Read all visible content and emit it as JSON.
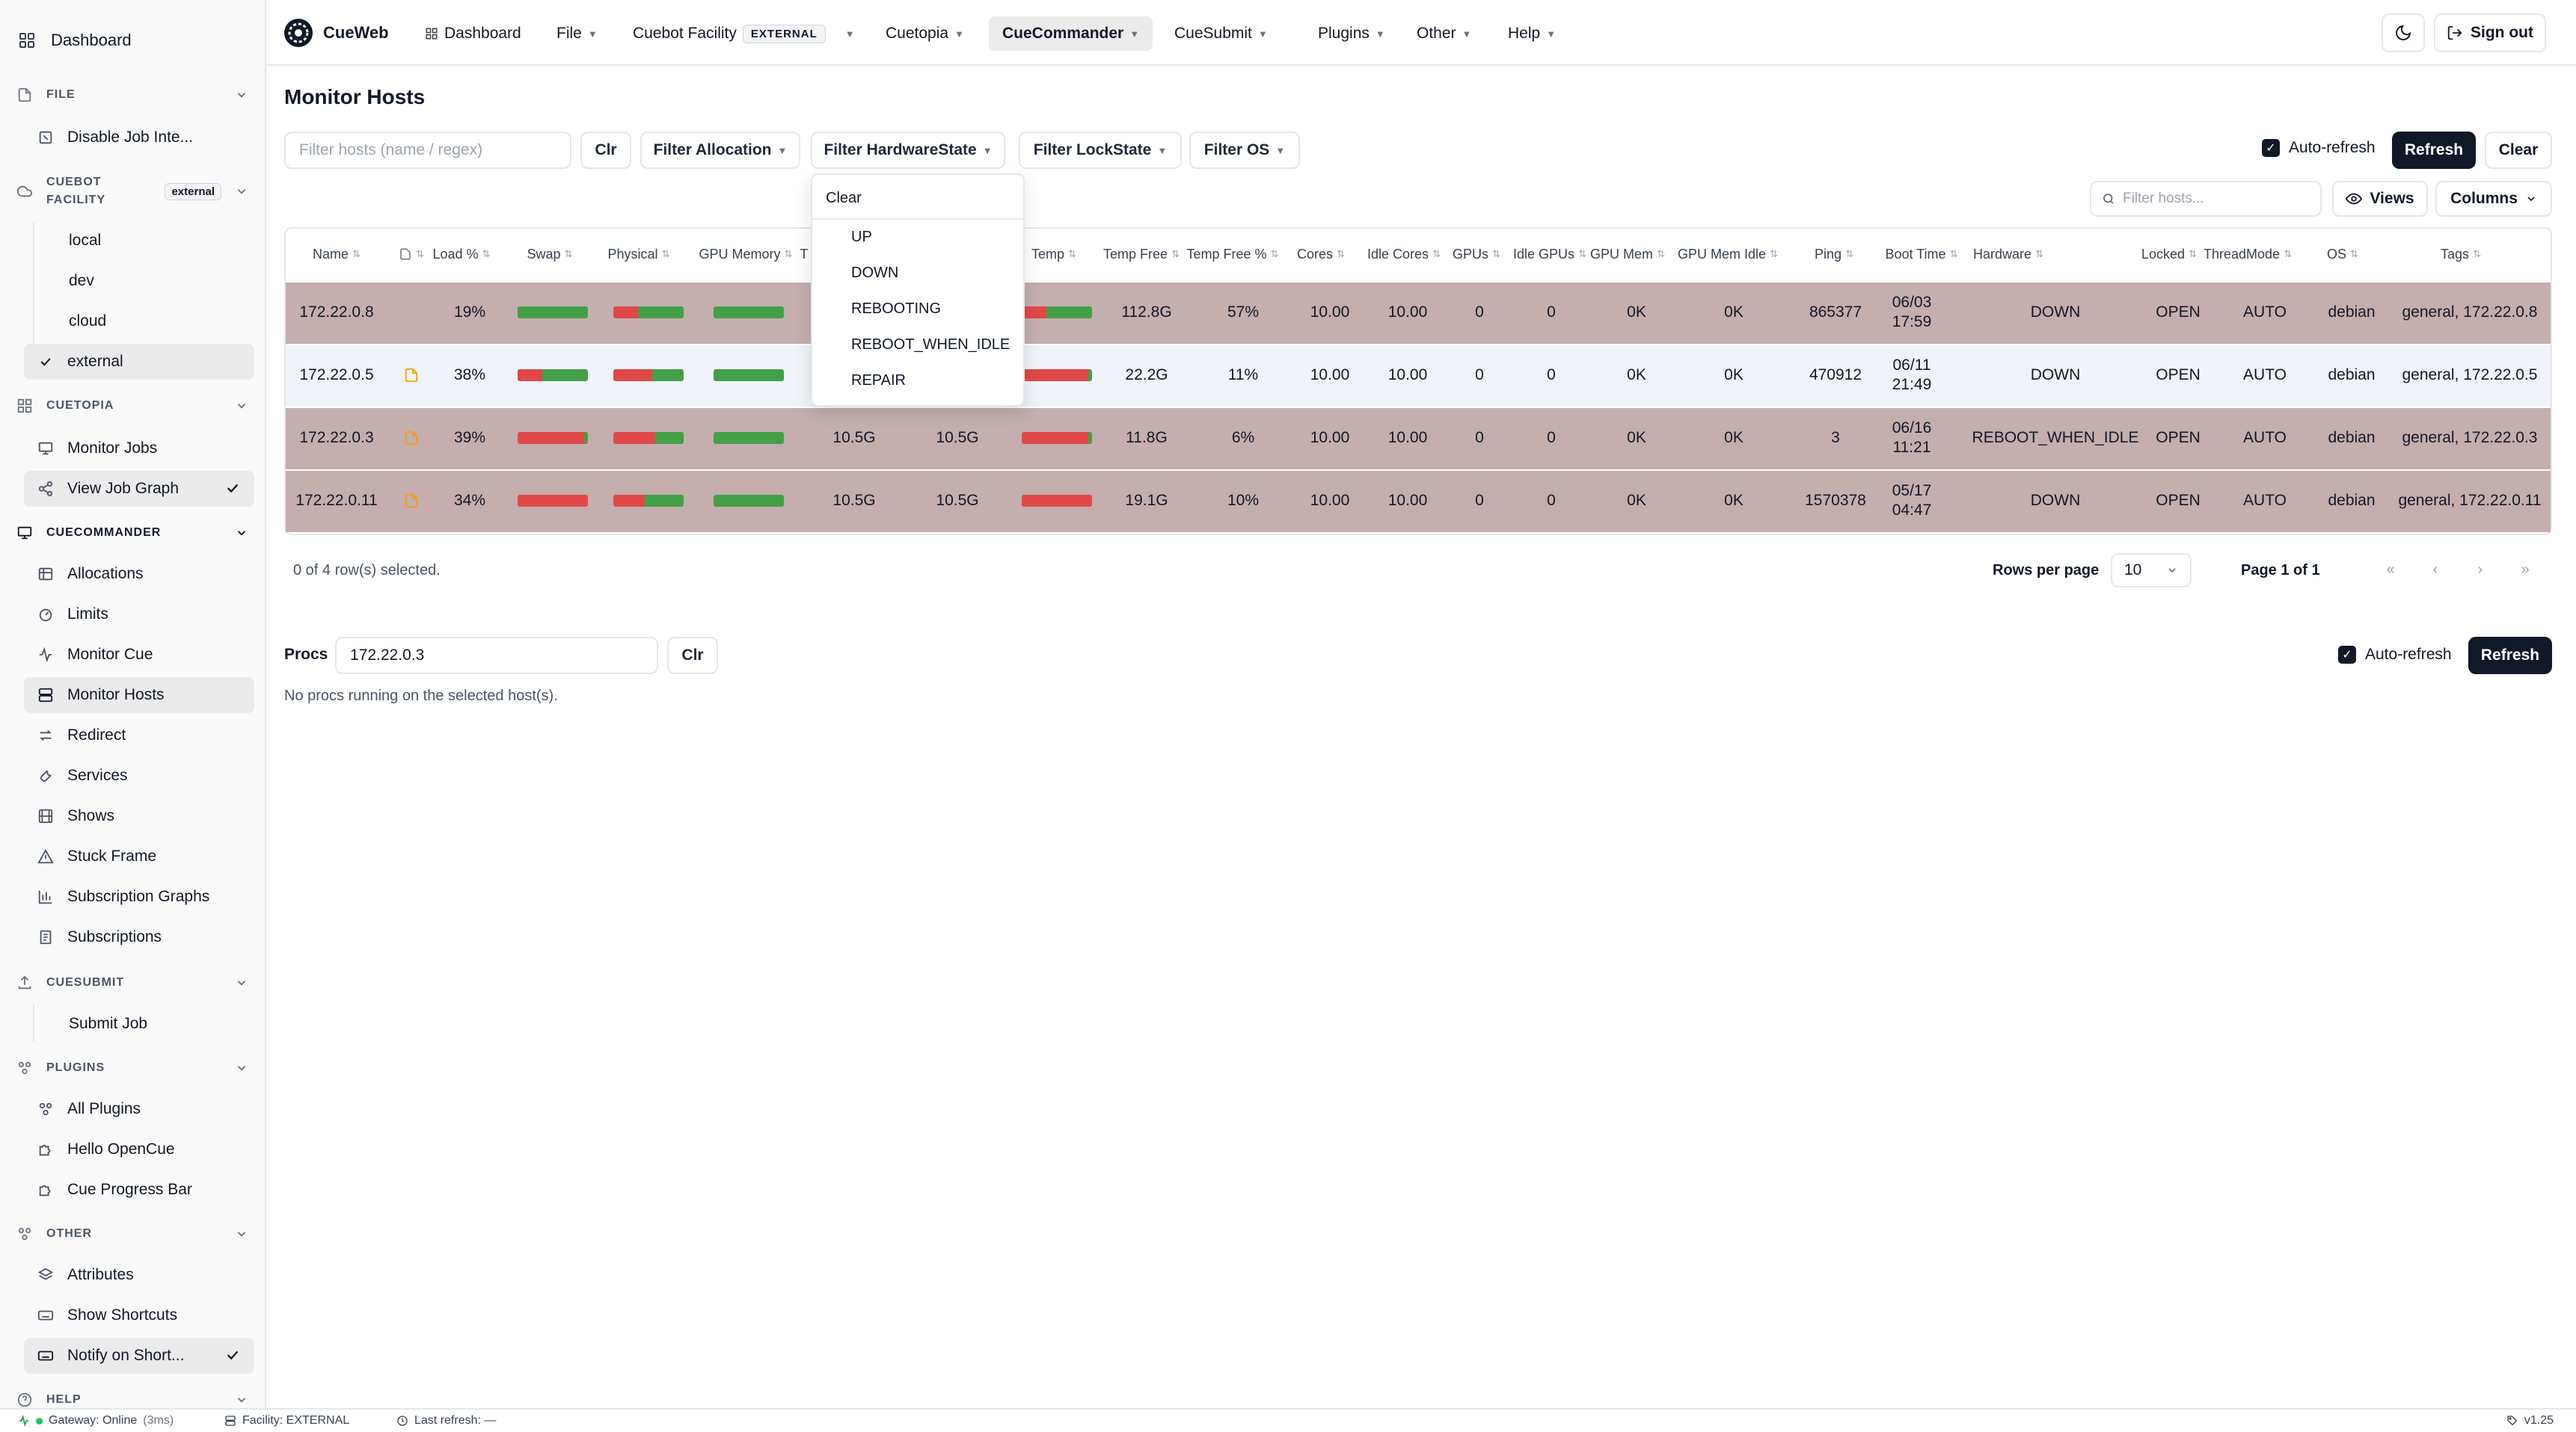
{
  "app": {
    "name": "CueWeb"
  },
  "sidebar": {
    "dashboard": "Dashboard",
    "file": {
      "title": "FILE",
      "items": [
        "Disable Job Inte..."
      ]
    },
    "cuebot_facility": {
      "title_line1": "CUEBOT",
      "title_line2": "FACILITY",
      "badge": "external",
      "items": [
        "local",
        "dev",
        "cloud",
        "external"
      ]
    },
    "cuetopia": {
      "title": "CUETOPIA",
      "items": [
        "Monitor Jobs",
        "View Job Graph"
      ]
    },
    "cuecommander": {
      "title": "CUECOMMANDER",
      "items": [
        "Allocations",
        "Limits",
        "Monitor Cue",
        "Monitor Hosts",
        "Redirect",
        "Services",
        "Shows",
        "Stuck Frame",
        "Subscription Graphs",
        "Subscriptions"
      ]
    },
    "cuesubmit": {
      "title": "CUESUBMIT",
      "items": [
        "Submit Job"
      ]
    },
    "plugins": {
      "title": "PLUGINS",
      "items": [
        "All Plugins",
        "Hello OpenCue",
        "Cue Progress Bar"
      ]
    },
    "other": {
      "title": "OTHER",
      "items": [
        "Attributes",
        "Show Shortcuts",
        "Notify on Short..."
      ]
    },
    "help": {
      "title": "HELP"
    }
  },
  "nav": {
    "dashboard": "Dashboard",
    "file": "File",
    "cuebot_facility": "Cuebot Facility",
    "facility_badge": "EXTERNAL",
    "cuetopia": "Cuetopia",
    "cuecommander": "CueCommander",
    "cuesubmit": "CueSubmit",
    "plugins": "Plugins",
    "other": "Other",
    "help": "Help",
    "sign_out": "Sign out"
  },
  "main": {
    "title": "Monitor Hosts",
    "filter_placeholder": "Filter hosts (name / regex)",
    "clr": "Clr",
    "filter_allocation": "Filter Allocation",
    "filter_hardware": "Filter HardwareState",
    "filter_lock": "Filter LockState",
    "filter_os": "Filter OS",
    "auto_refresh": "Auto-refresh",
    "refresh": "Refresh",
    "clear": "Clear",
    "search_placeholder": "Filter hosts...",
    "views": "Views",
    "columns": "Columns"
  },
  "dropdown": {
    "clear": "Clear",
    "options": [
      "UP",
      "DOWN",
      "REBOOTING",
      "REBOOT_WHEN_IDLE",
      "REPAIR"
    ]
  },
  "table": {
    "headers": [
      "Name",
      "Load %",
      "Swap",
      "Physical",
      "GPU Memory",
      "T",
      "Temp",
      "Temp Free",
      "Temp Free %",
      "Cores",
      "Idle Cores",
      "GPUs",
      "Idle GPUs",
      "GPU Mem",
      "GPU Mem Idle",
      "Ping",
      "Boot Time",
      "Hardware",
      "Locked",
      "ThreadMode",
      "OS",
      "Tags"
    ],
    "rows": [
      {
        "name": "172.22.0.8",
        "doc": false,
        "load": "19%",
        "swap": 0.0,
        "physical": 0.35,
        "gpu": 0.0,
        "mem": "",
        "memfree": "",
        "temp": 0.35,
        "temp_free": "112.8G",
        "temp_free_pct": "57%",
        "cores": "10.00",
        "idle_cores": "10.00",
        "gpus": "0",
        "idle_gpus": "0",
        "gpu_mem": "0K",
        "gpu_mem_idle": "0K",
        "ping": "865377",
        "boot_date": "06/03",
        "boot_time": "17:59",
        "hardware": "DOWN",
        "locked": "OPEN",
        "thread": "AUTO",
        "os": "debian",
        "tags": "general, 172.22.0.8"
      },
      {
        "name": "172.22.0.5",
        "doc": true,
        "load": "38%",
        "swap": 0.35,
        "physical": 0.55,
        "gpu": 0.0,
        "mem": "",
        "memfree": "",
        "temp": 0.95,
        "temp_free": "22.2G",
        "temp_free_pct": "11%",
        "cores": "10.00",
        "idle_cores": "10.00",
        "gpus": "0",
        "idle_gpus": "0",
        "gpu_mem": "0K",
        "gpu_mem_idle": "0K",
        "ping": "470912",
        "boot_date": "06/11",
        "boot_time": "21:49",
        "hardware": "DOWN",
        "locked": "OPEN",
        "thread": "AUTO",
        "os": "debian",
        "tags": "general, 172.22.0.5"
      },
      {
        "name": "172.22.0.3",
        "doc": true,
        "load": "39%",
        "swap": 0.95,
        "physical": 0.6,
        "gpu": 0.0,
        "mem": "10.5G",
        "memfree": "10.5G",
        "temp": 0.95,
        "temp_free": "11.8G",
        "temp_free_pct": "6%",
        "cores": "10.00",
        "idle_cores": "10.00",
        "gpus": "0",
        "idle_gpus": "0",
        "gpu_mem": "0K",
        "gpu_mem_idle": "0K",
        "ping": "3",
        "boot_date": "06/16",
        "boot_time": "11:21",
        "hardware": "REBOOT_WHEN_IDLE",
        "locked": "OPEN",
        "thread": "AUTO",
        "os": "debian",
        "tags": "general, 172.22.0.3"
      },
      {
        "name": "172.22.0.11",
        "doc": true,
        "load": "34%",
        "swap": 1.0,
        "physical": 0.45,
        "gpu": 0.0,
        "mem": "10.5G",
        "memfree": "10.5G",
        "temp": 1.0,
        "temp_free": "19.1G",
        "temp_free_pct": "10%",
        "cores": "10.00",
        "idle_cores": "10.00",
        "gpus": "0",
        "idle_gpus": "0",
        "gpu_mem": "0K",
        "gpu_mem_idle": "0K",
        "ping": "1570378",
        "boot_date": "05/17",
        "boot_time": "04:47",
        "hardware": "DOWN",
        "locked": "OPEN",
        "thread": "AUTO",
        "os": "debian",
        "tags": "general, 172.22.0.11"
      }
    ],
    "selected": "0 of 4 row(s) selected.",
    "rows_per_page_label": "Rows per page",
    "rows_per_page": "10",
    "page": "Page 1 of 1"
  },
  "procs": {
    "label": "Procs",
    "value": "172.22.0.3",
    "clr": "Clr",
    "auto_refresh": "Auto-refresh",
    "refresh": "Refresh",
    "empty": "No procs running on the selected host(s)."
  },
  "status": {
    "gateway": "Gateway: Online",
    "latency": "(3ms)",
    "facility": "Facility: EXTERNAL",
    "last_refresh": "Last refresh: —",
    "version": "v1.25"
  },
  "colors": {
    "row_highlight": "#c4aeae",
    "row_normal": "#f0f3f8",
    "bar_red": "#e04848",
    "bar_green": "#43a047",
    "accent": "#111827"
  }
}
